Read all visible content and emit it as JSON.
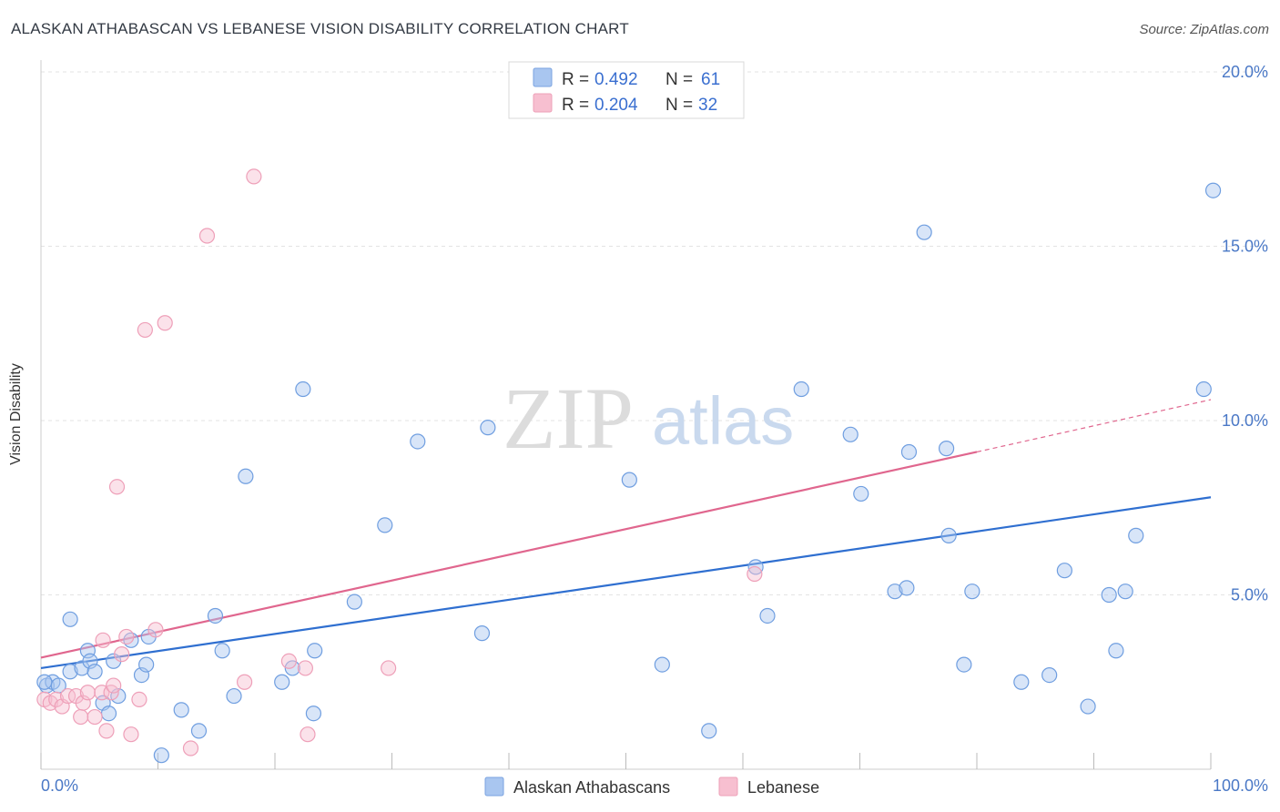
{
  "header": {
    "title": "ALASKAN ATHABASCAN VS LEBANESE VISION DISABILITY CORRELATION CHART",
    "source": "Source: ZipAtlas.com"
  },
  "watermark": {
    "zip": "ZIP",
    "atlas": "atlas"
  },
  "legend": {
    "r_label": "R =",
    "n_label": "N =",
    "entries": [
      {
        "r": "0.492",
        "n": "61",
        "color": "#a9c6f0",
        "stroke": "#7aa3e0"
      },
      {
        "r": "0.204",
        "n": "32",
        "color": "#f7bfd0",
        "stroke": "#eea0b8"
      }
    ]
  },
  "bottom_legend": [
    {
      "label": "Alaskan Athabascans",
      "color": "#a9c6f0",
      "stroke": "#7aa3e0"
    },
    {
      "label": "Lebanese",
      "color": "#f7bfd0",
      "stroke": "#eea0b8"
    }
  ],
  "chart_data": {
    "type": "scatter",
    "title": "ALASKAN ATHABASCAN VS LEBANESE VISION DISABILITY CORRELATION CHART",
    "xlabel": "",
    "ylabel": "Vision Disability",
    "xlim": [
      0,
      100
    ],
    "ylim": [
      0,
      20
    ],
    "x_ticks": [
      "0.0%",
      "100.0%"
    ],
    "y_ticks": [
      {
        "value": 5,
        "label": "5.0%"
      },
      {
        "value": 10,
        "label": "10.0%"
      },
      {
        "value": 15,
        "label": "15.0%"
      },
      {
        "value": 20,
        "label": "20.0%"
      }
    ],
    "grid": true,
    "legend_position": "top-center",
    "series": [
      {
        "name": "Alaskan Athabascans",
        "color": "#6f9ee0",
        "fill": "#a9c6f0",
        "trend": {
          "x": [
            0,
            100
          ],
          "y": [
            2.9,
            7.8
          ],
          "color": "#2f6fd0"
        },
        "points": [
          [
            0.5,
            2.4
          ],
          [
            1.0,
            2.5
          ],
          [
            1.5,
            2.4
          ],
          [
            2.5,
            4.3
          ],
          [
            2.5,
            2.8
          ],
          [
            3.5,
            2.9
          ],
          [
            4.0,
            3.4
          ],
          [
            4.2,
            3.1
          ],
          [
            4.6,
            2.8
          ],
          [
            5.3,
            1.9
          ],
          [
            5.8,
            1.6
          ],
          [
            6.2,
            3.1
          ],
          [
            6.6,
            2.1
          ],
          [
            7.7,
            3.7
          ],
          [
            8.6,
            2.7
          ],
          [
            9.0,
            3.0
          ],
          [
            9.2,
            3.8
          ],
          [
            10.3,
            0.4
          ],
          [
            12.0,
            1.7
          ],
          [
            13.5,
            1.1
          ],
          [
            14.9,
            4.4
          ],
          [
            15.5,
            3.4
          ],
          [
            16.5,
            2.1
          ],
          [
            17.5,
            8.4
          ],
          [
            20.6,
            2.5
          ],
          [
            21.5,
            2.9
          ],
          [
            22.4,
            10.9
          ],
          [
            23.3,
            1.6
          ],
          [
            23.4,
            3.4
          ],
          [
            26.8,
            4.8
          ],
          [
            29.4,
            7.0
          ],
          [
            32.2,
            9.4
          ],
          [
            37.7,
            3.9
          ],
          [
            38.2,
            9.8
          ],
          [
            50.3,
            8.3
          ],
          [
            53.1,
            3.0
          ],
          [
            57.1,
            1.1
          ],
          [
            61.1,
            5.8
          ],
          [
            62.1,
            4.4
          ],
          [
            65.0,
            10.9
          ],
          [
            69.2,
            9.6
          ],
          [
            70.1,
            7.9
          ],
          [
            73.0,
            5.1
          ],
          [
            74.0,
            5.2
          ],
          [
            74.2,
            9.1
          ],
          [
            75.5,
            15.4
          ],
          [
            77.4,
            9.2
          ],
          [
            77.6,
            6.7
          ],
          [
            78.9,
            3.0
          ],
          [
            79.6,
            5.1
          ],
          [
            83.8,
            2.5
          ],
          [
            86.2,
            2.7
          ],
          [
            87.5,
            5.7
          ],
          [
            89.5,
            1.8
          ],
          [
            91.3,
            5.0
          ],
          [
            91.9,
            3.4
          ],
          [
            92.7,
            5.1
          ],
          [
            93.6,
            6.7
          ],
          [
            99.4,
            10.9
          ],
          [
            100.2,
            16.6
          ],
          [
            0.3,
            2.5
          ]
        ]
      },
      {
        "name": "Lebanese",
        "color": "#ee9fb8",
        "fill": "#f7bfd0",
        "trend": {
          "x": [
            0,
            80
          ],
          "y": [
            3.2,
            9.1
          ],
          "dash_x": [
            80,
            100
          ],
          "dash_y": [
            9.1,
            10.6
          ],
          "color": "#e0668e"
        },
        "points": [
          [
            0.3,
            2.0
          ],
          [
            0.8,
            1.9
          ],
          [
            1.3,
            2.0
          ],
          [
            1.8,
            1.8
          ],
          [
            2.3,
            2.1
          ],
          [
            3.0,
            2.1
          ],
          [
            3.4,
            1.5
          ],
          [
            3.6,
            1.9
          ],
          [
            4.0,
            2.2
          ],
          [
            4.6,
            1.5
          ],
          [
            5.2,
            2.2
          ],
          [
            5.3,
            3.7
          ],
          [
            5.6,
            1.1
          ],
          [
            6.0,
            2.2
          ],
          [
            6.2,
            2.4
          ],
          [
            6.5,
            8.1
          ],
          [
            6.9,
            3.3
          ],
          [
            7.3,
            3.8
          ],
          [
            7.7,
            1.0
          ],
          [
            8.4,
            2.0
          ],
          [
            8.9,
            12.6
          ],
          [
            9.8,
            4.0
          ],
          [
            10.6,
            12.8
          ],
          [
            12.8,
            0.6
          ],
          [
            14.2,
            15.3
          ],
          [
            17.4,
            2.5
          ],
          [
            18.2,
            17.0
          ],
          [
            21.2,
            3.1
          ],
          [
            22.6,
            2.9
          ],
          [
            22.8,
            1.0
          ],
          [
            29.7,
            2.9
          ],
          [
            61.0,
            5.6
          ]
        ]
      }
    ]
  }
}
